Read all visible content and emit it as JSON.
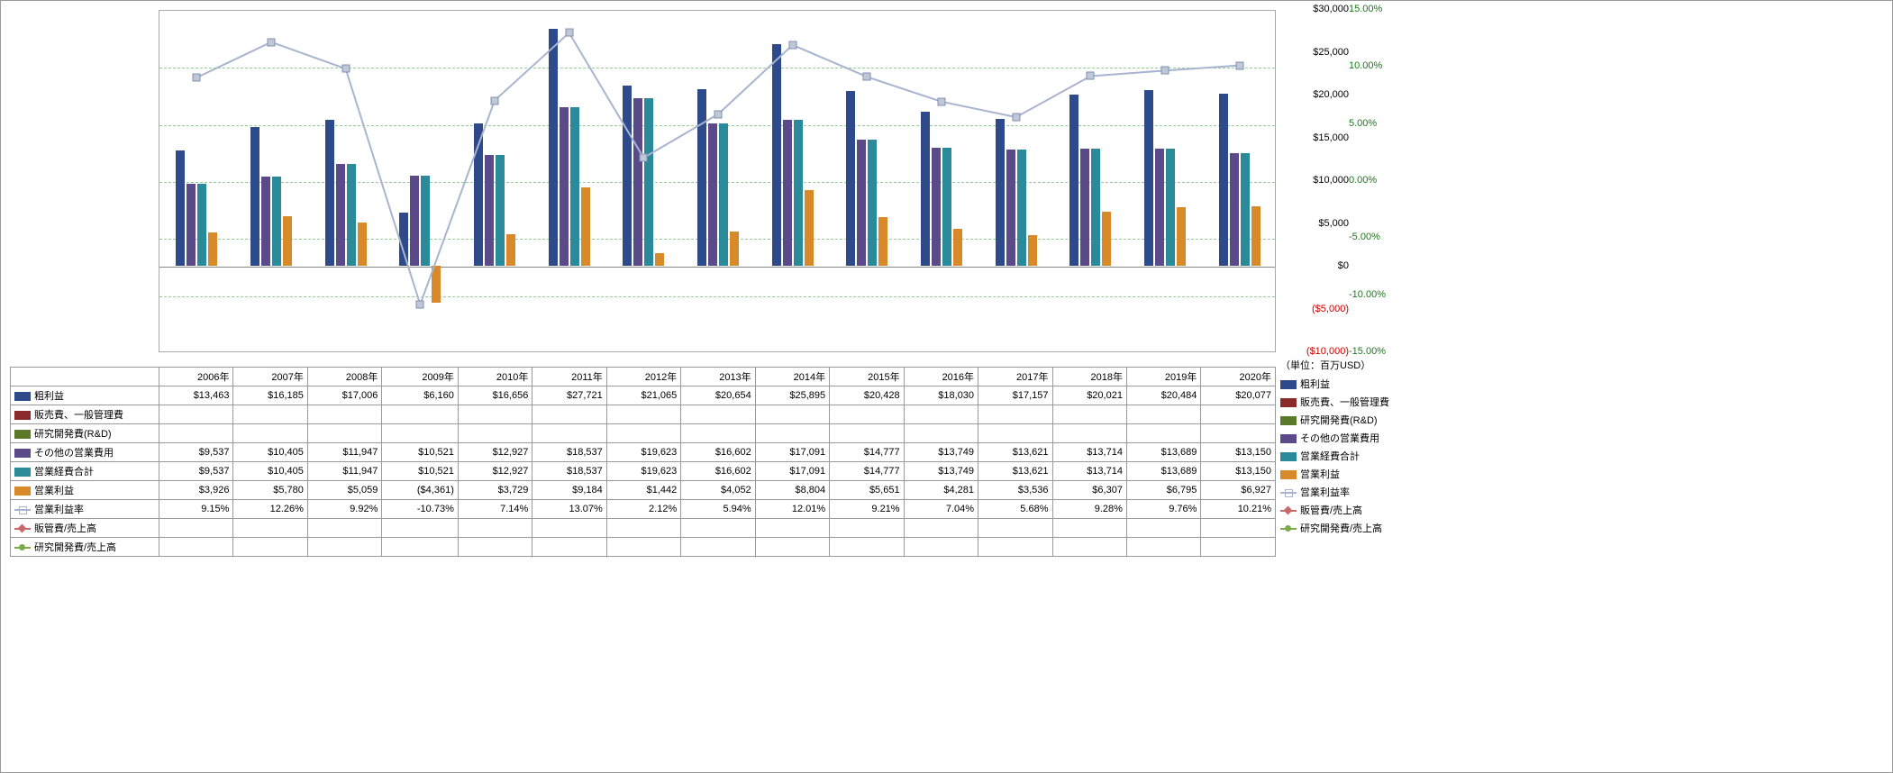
{
  "chart": {
    "type": "bar+line",
    "years": [
      "2006年",
      "2007年",
      "2008年",
      "2009年",
      "2010年",
      "2011年",
      "2012年",
      "2013年",
      "2014年",
      "2015年",
      "2016年",
      "2017年",
      "2018年",
      "2019年",
      "2020年"
    ],
    "y1_min": -10000,
    "y1_max": 30000,
    "y1_step": 5000,
    "y2_min": -15,
    "y2_max": 15,
    "y2_step": 5,
    "y1_ticks": [
      "$30,000",
      "$25,000",
      "$20,000",
      "$15,000",
      "$10,000",
      "$5,000",
      "$0",
      "($5,000)",
      "($10,000)"
    ],
    "y2_ticks": [
      "15.00%",
      "10.00%",
      "5.00%",
      "0.00%",
      "-5.00%",
      "-10.00%",
      "-15.00%"
    ],
    "unit_label": "（単位：百万USD）",
    "series": [
      {
        "key": "gross_profit",
        "label": "粗利益",
        "color": "#2e4a8a",
        "type": "bar",
        "values": [
          13463,
          16185,
          17006,
          6160,
          16656,
          27721,
          21065,
          20654,
          25895,
          20428,
          18030,
          17157,
          20021,
          20484,
          20077
        ],
        "display": [
          "$13,463",
          "$16,185",
          "$17,006",
          "$6,160",
          "$16,656",
          "$27,721",
          "$21,065",
          "$20,654",
          "$25,895",
          "$20,428",
          "$18,030",
          "$17,157",
          "$20,021",
          "$20,484",
          "$20,077"
        ]
      },
      {
        "key": "sga",
        "label": "販売費、一般管理費",
        "color": "#8b2a2a",
        "type": "bar",
        "values": [
          null,
          null,
          null,
          null,
          null,
          null,
          null,
          null,
          null,
          null,
          null,
          null,
          null,
          null,
          null
        ],
        "display": [
          "",
          "",
          "",
          "",
          "",
          "",
          "",
          "",
          "",
          "",
          "",
          "",
          "",
          "",
          ""
        ]
      },
      {
        "key": "rnd",
        "label": "研究開発費(R&D)",
        "color": "#5a7a2a",
        "type": "bar",
        "values": [
          null,
          null,
          null,
          null,
          null,
          null,
          null,
          null,
          null,
          null,
          null,
          null,
          null,
          null,
          null
        ],
        "display": [
          "",
          "",
          "",
          "",
          "",
          "",
          "",
          "",
          "",
          "",
          "",
          "",
          "",
          "",
          ""
        ]
      },
      {
        "key": "other_op",
        "label": "その他の営業費用",
        "color": "#5a4a8a",
        "type": "bar",
        "values": [
          9537,
          10405,
          11947,
          10521,
          12927,
          18537,
          19623,
          16602,
          17091,
          14777,
          13749,
          13621,
          13714,
          13689,
          13150
        ],
        "display": [
          "$9,537",
          "$10,405",
          "$11,947",
          "$10,521",
          "$12,927",
          "$18,537",
          "$19,623",
          "$16,602",
          "$17,091",
          "$14,777",
          "$13,749",
          "$13,621",
          "$13,714",
          "$13,689",
          "$13,150"
        ]
      },
      {
        "key": "op_exp_total",
        "label": "営業経費合計",
        "color": "#2a8a9a",
        "type": "bar",
        "values": [
          9537,
          10405,
          11947,
          10521,
          12927,
          18537,
          19623,
          16602,
          17091,
          14777,
          13749,
          13621,
          13714,
          13689,
          13150
        ],
        "display": [
          "$9,537",
          "$10,405",
          "$11,947",
          "$10,521",
          "$12,927",
          "$18,537",
          "$19,623",
          "$16,602",
          "$17,091",
          "$14,777",
          "$13,749",
          "$13,621",
          "$13,714",
          "$13,689",
          "$13,150"
        ]
      },
      {
        "key": "op_income",
        "label": "営業利益",
        "color": "#d88a2a",
        "type": "bar",
        "values": [
          3926,
          5780,
          5059,
          -4361,
          3729,
          9184,
          1442,
          4052,
          8804,
          5651,
          4281,
          3536,
          6307,
          6795,
          6927
        ],
        "display": [
          "$3,926",
          "$5,780",
          "$5,059",
          "($4,361)",
          "$3,729",
          "$9,184",
          "$1,442",
          "$4,052",
          "$8,804",
          "$5,651",
          "$4,281",
          "$3,536",
          "$6,307",
          "$6,795",
          "$6,927"
        ]
      },
      {
        "key": "op_margin",
        "label": "営業利益率",
        "color": "#a8b4d0",
        "type": "line",
        "values": [
          9.15,
          12.26,
          9.92,
          -10.73,
          7.14,
          13.07,
          2.12,
          5.94,
          12.01,
          9.21,
          7.04,
          5.68,
          9.28,
          9.76,
          10.21
        ],
        "display": [
          "9.15%",
          "12.26%",
          "9.92%",
          "-10.73%",
          "7.14%",
          "13.07%",
          "2.12%",
          "5.94%",
          "12.01%",
          "9.21%",
          "7.04%",
          "5.68%",
          "9.28%",
          "9.76%",
          "10.21%"
        ]
      },
      {
        "key": "sga_ratio",
        "label": "販管費/売上高",
        "color": "#c86a6a",
        "type": "line_diamond",
        "values": [
          null,
          null,
          null,
          null,
          null,
          null,
          null,
          null,
          null,
          null,
          null,
          null,
          null,
          null,
          null
        ],
        "display": [
          "",
          "",
          "",
          "",
          "",
          "",
          "",
          "",
          "",
          "",
          "",
          "",
          "",
          "",
          ""
        ]
      },
      {
        "key": "rnd_ratio",
        "label": "研究開発費/売上高",
        "color": "#7aaa4a",
        "type": "line_circle",
        "values": [
          null,
          null,
          null,
          null,
          null,
          null,
          null,
          null,
          null,
          null,
          null,
          null,
          null,
          null,
          null
        ],
        "display": [
          "",
          "",
          "",
          "",
          "",
          "",
          "",
          "",
          "",
          "",
          "",
          "",
          "",
          "",
          ""
        ]
      }
    ],
    "background": "#ffffff",
    "grid_color": "#2ca02c",
    "neg_axis_color": "#cc0000"
  }
}
